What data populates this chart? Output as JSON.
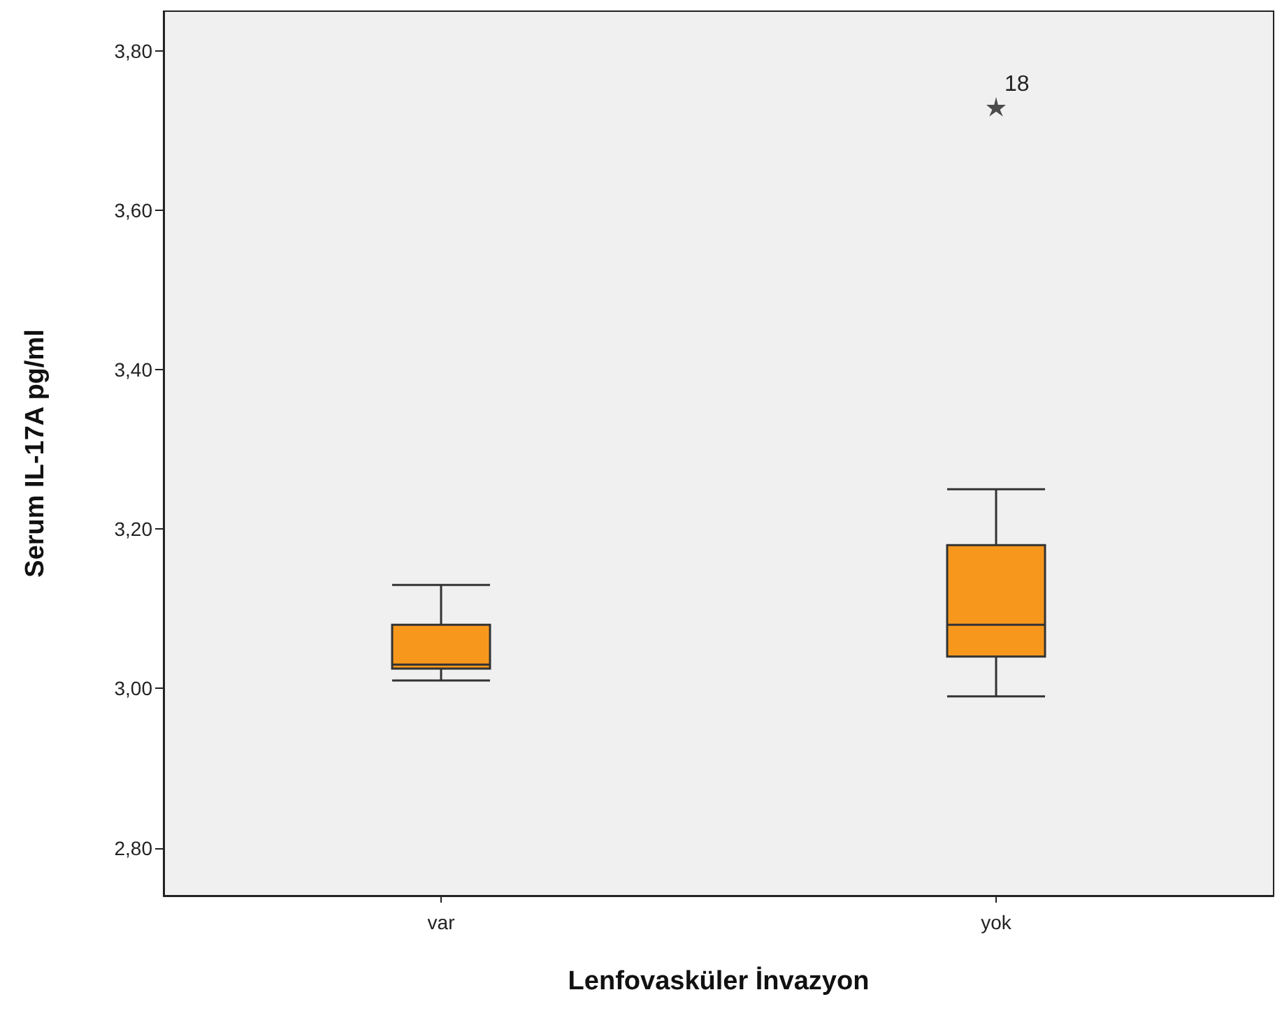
{
  "chart_data": {
    "type": "box",
    "xlabel": "Lenfovasküler İnvazyon",
    "ylabel": "Serum IL-17A pg/ml",
    "categories": [
      "var",
      "yok"
    ],
    "series": [
      {
        "color": "#f7981d",
        "boxes": [
          {
            "low": 3.01,
            "q1": 3.025,
            "median": 3.03,
            "q3": 3.08,
            "high": 3.13
          },
          {
            "low": 2.99,
            "q1": 3.04,
            "median": 3.08,
            "q3": 3.18,
            "high": 3.25,
            "outliers": [
              3.73
            ]
          }
        ]
      }
    ],
    "marker": "star",
    "annotations": [
      "18"
    ],
    "ylim": [
      2.74,
      3.85
    ],
    "yticks": [
      {
        "value": 2.8,
        "label": "2,80"
      },
      {
        "value": 3.0,
        "label": "3,00"
      },
      {
        "value": 3.2,
        "label": "3,20"
      },
      {
        "value": 3.4,
        "label": "3,40"
      },
      {
        "value": 3.6,
        "label": "3,60"
      },
      {
        "value": 3.8,
        "label": "3,80"
      }
    ],
    "grid": false
  }
}
